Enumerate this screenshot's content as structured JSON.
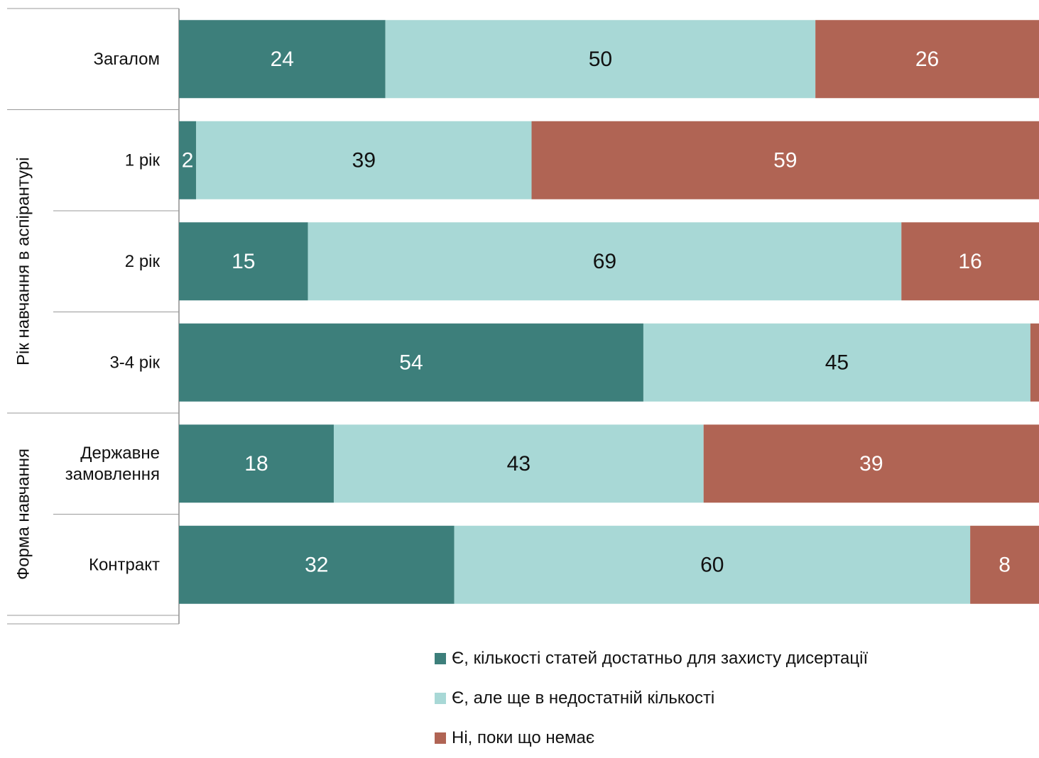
{
  "chart_data": {
    "type": "bar",
    "orientation": "horizontal",
    "stacked": true,
    "normalized": true,
    "categories": [
      "Загалом",
      "1 рік",
      "2 рік",
      "3-4 рік",
      "Державне замовлення",
      "Контракт"
    ],
    "category_lines": [
      [
        "Загалом"
      ],
      [
        "1 рік"
      ],
      [
        "2 рік"
      ],
      [
        "3-4 рік"
      ],
      [
        "Державне",
        "замовлення"
      ],
      [
        "Контракт"
      ]
    ],
    "groups": [
      {
        "label": "",
        "categories": [
          "Загалом"
        ]
      },
      {
        "label": "Рік навчання в аспірантурі",
        "categories": [
          "1 рік",
          "2 рік",
          "3-4 рік"
        ]
      },
      {
        "label": "Форма навчання",
        "categories": [
          "Державне замовлення",
          "Контракт"
        ]
      }
    ],
    "series": [
      {
        "name": "Є, кількості статей достатньо для захисту дисертації",
        "color": "#3d7f7b",
        "label_color": "#ffffff",
        "values": [
          24,
          2,
          15,
          54,
          18,
          32
        ]
      },
      {
        "name": "Є, але ще в недостатній кількості",
        "color": "#a8d8d6",
        "label_color": "#111111",
        "values": [
          50,
          39,
          69,
          45,
          43,
          60
        ]
      },
      {
        "name": "Ні, поки що немає",
        "color": "#b06454",
        "label_color": "#ffffff",
        "values": [
          26,
          59,
          16,
          1,
          39,
          8
        ]
      }
    ],
    "value_labels": [
      [
        "24",
        "50",
        "26"
      ],
      [
        "2",
        "39",
        "59"
      ],
      [
        "15",
        "69",
        "16"
      ],
      [
        "54",
        "45",
        ""
      ],
      [
        "18",
        "43",
        "39"
      ],
      [
        "32",
        "60",
        "8"
      ]
    ],
    "xlim": [
      0,
      100
    ],
    "grid": false,
    "legend_position": "bottom-right"
  }
}
